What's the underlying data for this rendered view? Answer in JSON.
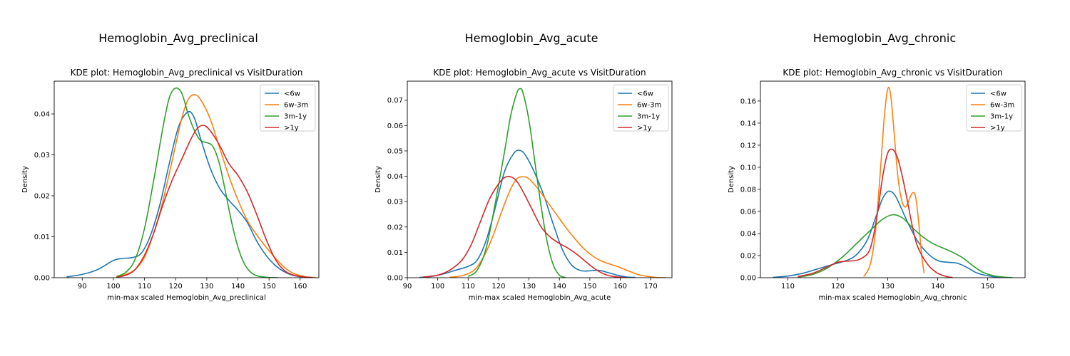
{
  "legend_entries": [
    "<6w",
    "6w-3m",
    "3m-1y",
    ">1y"
  ],
  "colors": {
    "<6w": "#1f77b4",
    "6w-3m": "#ff7f0e",
    "3m-1y": "#2ca02c",
    ">1y": "#d62728"
  },
  "chart_data": [
    {
      "type": "line",
      "suptitle": "Hemoglobin_Avg_preclinical",
      "title": "KDE plot:  Hemoglobin_Avg_preclinical vs VisitDuration",
      "xlabel": "min-max scaled Hemoglobin_Avg_preclinical",
      "ylabel": "Density",
      "xlim": [
        81,
        166
      ],
      "ylim": [
        0,
        0.048
      ],
      "xticks": [
        90,
        100,
        110,
        120,
        130,
        140,
        150,
        160
      ],
      "yticks": [
        0.0,
        0.01,
        0.02,
        0.03,
        0.04
      ],
      "yticks_format": 2,
      "legend": "top-right",
      "series": [
        {
          "name": "<6w",
          "x": [
            85,
            90,
            95,
            100,
            103,
            106,
            109,
            112,
            115,
            118,
            121,
            124,
            126,
            128,
            131,
            134,
            137,
            140,
            143,
            146,
            149,
            152,
            155,
            158,
            162,
            165
          ],
          "y": [
            0.0002,
            0.0008,
            0.002,
            0.0042,
            0.0047,
            0.0049,
            0.006,
            0.0105,
            0.018,
            0.028,
            0.037,
            0.0405,
            0.039,
            0.034,
            0.027,
            0.022,
            0.019,
            0.0165,
            0.0135,
            0.009,
            0.0055,
            0.003,
            0.0014,
            0.0005,
            0.0001,
            3e-05
          ]
        },
        {
          "name": "6w-3m",
          "x": [
            101,
            104,
            107,
            110,
            113,
            116,
            119,
            122,
            124,
            126,
            128,
            131,
            134,
            137,
            140,
            143,
            146,
            149,
            152,
            155,
            158,
            162,
            165
          ],
          "y": [
            0.0002,
            0.0008,
            0.002,
            0.005,
            0.011,
            0.019,
            0.029,
            0.039,
            0.0435,
            0.0447,
            0.0435,
            0.039,
            0.032,
            0.025,
            0.019,
            0.014,
            0.0105,
            0.0075,
            0.0048,
            0.0025,
            0.001,
            0.0002,
            5e-05
          ]
        },
        {
          "name": "3m-1y",
          "x": [
            101,
            104,
            107,
            110,
            113,
            116,
            118,
            120,
            122,
            124,
            126,
            128,
            130,
            132,
            134,
            136,
            138,
            140,
            142,
            144,
            146,
            148,
            150,
            153
          ],
          "y": [
            0.0003,
            0.0013,
            0.0045,
            0.012,
            0.024,
            0.037,
            0.044,
            0.0463,
            0.045,
            0.04,
            0.036,
            0.0335,
            0.033,
            0.032,
            0.028,
            0.021,
            0.0135,
            0.0075,
            0.0035,
            0.0014,
            0.0005,
            0.0002,
            5e-05,
            1e-05
          ]
        },
        {
          "name": ">1y",
          "x": [
            101,
            104,
            107,
            110,
            113,
            116,
            119,
            122,
            125,
            127,
            129,
            131,
            134,
            137,
            140,
            143,
            146,
            149,
            152,
            155,
            158,
            161,
            164
          ],
          "y": [
            0.0001,
            0.0006,
            0.002,
            0.0055,
            0.011,
            0.018,
            0.024,
            0.029,
            0.034,
            0.0365,
            0.0372,
            0.036,
            0.0325,
            0.028,
            0.025,
            0.021,
            0.0155,
            0.0095,
            0.0045,
            0.0017,
            0.0006,
            0.0002,
            4e-05
          ]
        }
      ]
    },
    {
      "type": "line",
      "suptitle": "Hemoglobin_Avg_acute",
      "title": "KDE plot:  Hemoglobin_Avg_acute vs VisitDuration",
      "xlabel": "min-max scaled Hemoglobin_Avg_acute",
      "ylabel": "Density",
      "xlim": [
        90,
        177
      ],
      "ylim": [
        0,
        0.0775
      ],
      "xticks": [
        90,
        100,
        110,
        120,
        130,
        140,
        150,
        160,
        170
      ],
      "yticks": [
        0.0,
        0.01,
        0.02,
        0.03,
        0.04,
        0.05,
        0.06,
        0.07
      ],
      "yticks_format": 2,
      "legend": "top-right",
      "series": [
        {
          "name": "<6w",
          "x": [
            94,
            98,
            102,
            106,
            110,
            113,
            116,
            119,
            122,
            125,
            127,
            129,
            132,
            135,
            138,
            141,
            144,
            147,
            150,
            153,
            156,
            159,
            162,
            165
          ],
          "y": [
            0.0001,
            0.0005,
            0.0015,
            0.003,
            0.0045,
            0.007,
            0.015,
            0.028,
            0.042,
            0.049,
            0.0502,
            0.048,
            0.041,
            0.032,
            0.021,
            0.011,
            0.005,
            0.0028,
            0.0027,
            0.0029,
            0.002,
            0.001,
            0.0003,
            0.0001
          ]
        },
        {
          "name": "6w-3m",
          "x": [
            104,
            108,
            112,
            115,
            118,
            121,
            124,
            126,
            128,
            130,
            133,
            136,
            139,
            142,
            145,
            148,
            151,
            154,
            157,
            160,
            163,
            166,
            169,
            172,
            175
          ],
          "y": [
            0.0002,
            0.0008,
            0.003,
            0.008,
            0.016,
            0.026,
            0.035,
            0.039,
            0.0398,
            0.039,
            0.035,
            0.03,
            0.025,
            0.02,
            0.0155,
            0.0115,
            0.0085,
            0.0065,
            0.0052,
            0.004,
            0.0025,
            0.0012,
            0.0005,
            0.0001,
            2e-05
          ]
        },
        {
          "name": "3m-1y",
          "x": [
            110,
            113,
            116,
            119,
            122,
            124,
            126,
            127,
            128,
            130,
            132,
            134,
            136,
            138,
            140,
            142
          ],
          "y": [
            0.0005,
            0.003,
            0.012,
            0.03,
            0.05,
            0.064,
            0.0728,
            0.0745,
            0.073,
            0.062,
            0.045,
            0.028,
            0.014,
            0.005,
            0.001,
            0.0001
          ]
        },
        {
          "name": ">1y",
          "x": [
            95,
            100,
            104,
            108,
            111,
            114,
            117,
            120,
            122,
            124,
            126,
            128,
            131,
            134,
            137,
            140,
            143,
            146,
            149,
            152,
            155,
            158,
            162
          ],
          "y": [
            0.0002,
            0.001,
            0.003,
            0.007,
            0.013,
            0.022,
            0.031,
            0.037,
            0.0395,
            0.0398,
            0.038,
            0.034,
            0.027,
            0.02,
            0.016,
            0.0135,
            0.0115,
            0.009,
            0.006,
            0.0032,
            0.0013,
            0.0004,
            5e-05
          ]
        }
      ]
    },
    {
      "type": "line",
      "suptitle": "Hemoglobin_Avg_chronic",
      "title": "KDE plot:  Hemoglobin_Avg_chronic vs VisitDuration",
      "xlabel": "min-max scaled Hemoglobin_Avg_chronic",
      "ylabel": "Density",
      "xlim": [
        104.5,
        157.5
      ],
      "ylim": [
        0,
        0.178
      ],
      "xticks": [
        110,
        120,
        130,
        140,
        150
      ],
      "yticks": [
        0.0,
        0.02,
        0.04,
        0.06,
        0.08,
        0.1,
        0.12,
        0.14,
        0.16
      ],
      "yticks_format": 2,
      "legend": "top-right",
      "series": [
        {
          "name": "<6w",
          "x": [
            107,
            110,
            113,
            116,
            119,
            122,
            124,
            126,
            128,
            129,
            130,
            131,
            132,
            134,
            136,
            138,
            140,
            142,
            144,
            146,
            148,
            151,
            154
          ],
          "y": [
            0.0003,
            0.0015,
            0.004,
            0.008,
            0.012,
            0.016,
            0.022,
            0.035,
            0.06,
            0.072,
            0.078,
            0.077,
            0.07,
            0.05,
            0.033,
            0.022,
            0.0155,
            0.014,
            0.013,
            0.009,
            0.004,
            0.001,
            0.0001
          ]
        },
        {
          "name": "6w-3m",
          "x": [
            125.2,
            126.5,
            127.5,
            128.5,
            129.3,
            130,
            130.6,
            131.3,
            132,
            132.8,
            133.6,
            134.4,
            135,
            135.6,
            136.2,
            136.8,
            137.3
          ],
          "y": [
            0.001,
            0.012,
            0.04,
            0.095,
            0.145,
            0.171,
            0.165,
            0.13,
            0.093,
            0.07,
            0.064,
            0.072,
            0.077,
            0.073,
            0.05,
            0.02,
            0.004
          ]
        },
        {
          "name": "3m-1y",
          "x": [
            112,
            115,
            118,
            121,
            124,
            127,
            129,
            131,
            133,
            135,
            137,
            139,
            141,
            143,
            145,
            147,
            149,
            151,
            153,
            155
          ],
          "y": [
            0.0005,
            0.003,
            0.009,
            0.019,
            0.032,
            0.045,
            0.053,
            0.057,
            0.054,
            0.045,
            0.037,
            0.031,
            0.027,
            0.023,
            0.018,
            0.011,
            0.005,
            0.002,
            0.0006,
            0.0001
          ]
        },
        {
          "name": ">1y",
          "x": [
            112,
            115,
            118,
            120,
            122,
            124,
            126,
            127,
            128,
            129,
            130,
            131,
            132,
            133,
            134,
            135,
            136,
            138,
            140,
            142,
            143
          ],
          "y": [
            0.001,
            0.004,
            0.01,
            0.014,
            0.015,
            0.016,
            0.022,
            0.035,
            0.06,
            0.092,
            0.113,
            0.116,
            0.108,
            0.09,
            0.068,
            0.045,
            0.028,
            0.012,
            0.004,
            0.0008,
            0.0002
          ]
        }
      ]
    }
  ]
}
